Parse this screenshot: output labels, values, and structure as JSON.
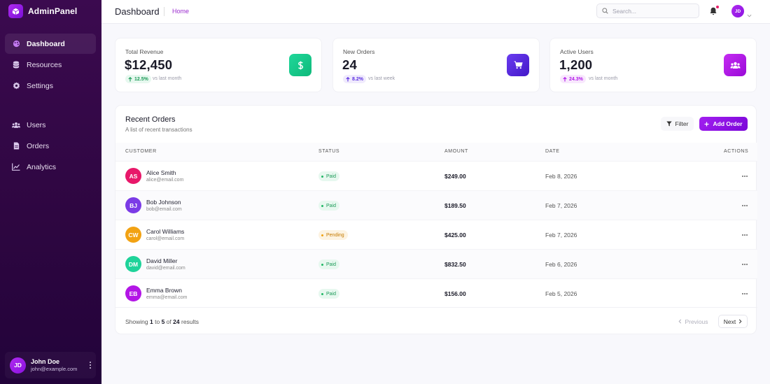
{
  "brand": {
    "name": "AdminPanel",
    "icon": "cube-icon"
  },
  "sidebar": {
    "items": [
      {
        "label": "Dashboard",
        "icon": "palette-icon",
        "active": true
      },
      {
        "label": "Resources",
        "icon": "database-icon"
      },
      {
        "label": "Settings",
        "icon": "gear-icon"
      },
      {
        "label": "Users",
        "icon": "users-icon"
      },
      {
        "label": "Orders",
        "icon": "file-icon"
      },
      {
        "label": "Analytics",
        "icon": "line-chart-icon"
      }
    ],
    "user": {
      "initials": "JD",
      "name": "John Doe",
      "email": "john@example.com"
    }
  },
  "header": {
    "title": "Dashboard",
    "breadcrumb": "Home",
    "search_placeholder": "Search...",
    "avatar_initials": "JD"
  },
  "stats": [
    {
      "label": "Total Revenue",
      "value": "$12,450",
      "change": "12.5%",
      "comparison": "vs last month",
      "icon": "dollar-icon",
      "color": "#13c98a"
    },
    {
      "label": "New Orders",
      "value": "24",
      "change": "8.2%",
      "comparison": "vs last week",
      "icon": "cart-icon",
      "color": "#5a2de0"
    },
    {
      "label": "Active Users",
      "value": "1,200",
      "change": "24.3%",
      "comparison": "vs last month",
      "icon": "users-icon",
      "color": "#b016e8"
    }
  ],
  "orders": {
    "title": "Recent Orders",
    "subtitle": "A list of recent transactions",
    "filter_label": "Filter",
    "add_label": "Add Order",
    "columns": {
      "customer": "CUSTOMER",
      "status": "STATUS",
      "amount": "AMOUNT",
      "date": "DATE",
      "actions": "ACTIONS"
    },
    "rows": [
      {
        "initials": "AS",
        "name": "Alice Smith",
        "email": "alice@email.com",
        "status": "Paid",
        "amount": "$249.00",
        "date": "Feb 8, 2026",
        "color": "#e8186a"
      },
      {
        "initials": "BJ",
        "name": "Bob Johnson",
        "email": "bob@email.com",
        "status": "Paid",
        "amount": "$189.50",
        "date": "Feb 7, 2026",
        "color": "#7b3be6"
      },
      {
        "initials": "CW",
        "name": "Carol Williams",
        "email": "carol@email.com",
        "status": "Pending",
        "amount": "$425.00",
        "date": "Feb 7, 2026",
        "color": "#f2a213"
      },
      {
        "initials": "DM",
        "name": "David Miller",
        "email": "david@email.com",
        "status": "Paid",
        "amount": "$832.50",
        "date": "Feb 6, 2026",
        "color": "#1fd39a"
      },
      {
        "initials": "EB",
        "name": "Emma Brown",
        "email": "emma@email.com",
        "status": "Paid",
        "amount": "$156.00",
        "date": "Feb 5, 2026",
        "color": "#b316e6"
      }
    ],
    "footer": {
      "prefix": "Showing",
      "from": "1",
      "to_word": "to",
      "to": "5",
      "of_word": "of",
      "total": "24",
      "suffix": "results"
    },
    "prev_label": "Previous",
    "next_label": "Next"
  }
}
